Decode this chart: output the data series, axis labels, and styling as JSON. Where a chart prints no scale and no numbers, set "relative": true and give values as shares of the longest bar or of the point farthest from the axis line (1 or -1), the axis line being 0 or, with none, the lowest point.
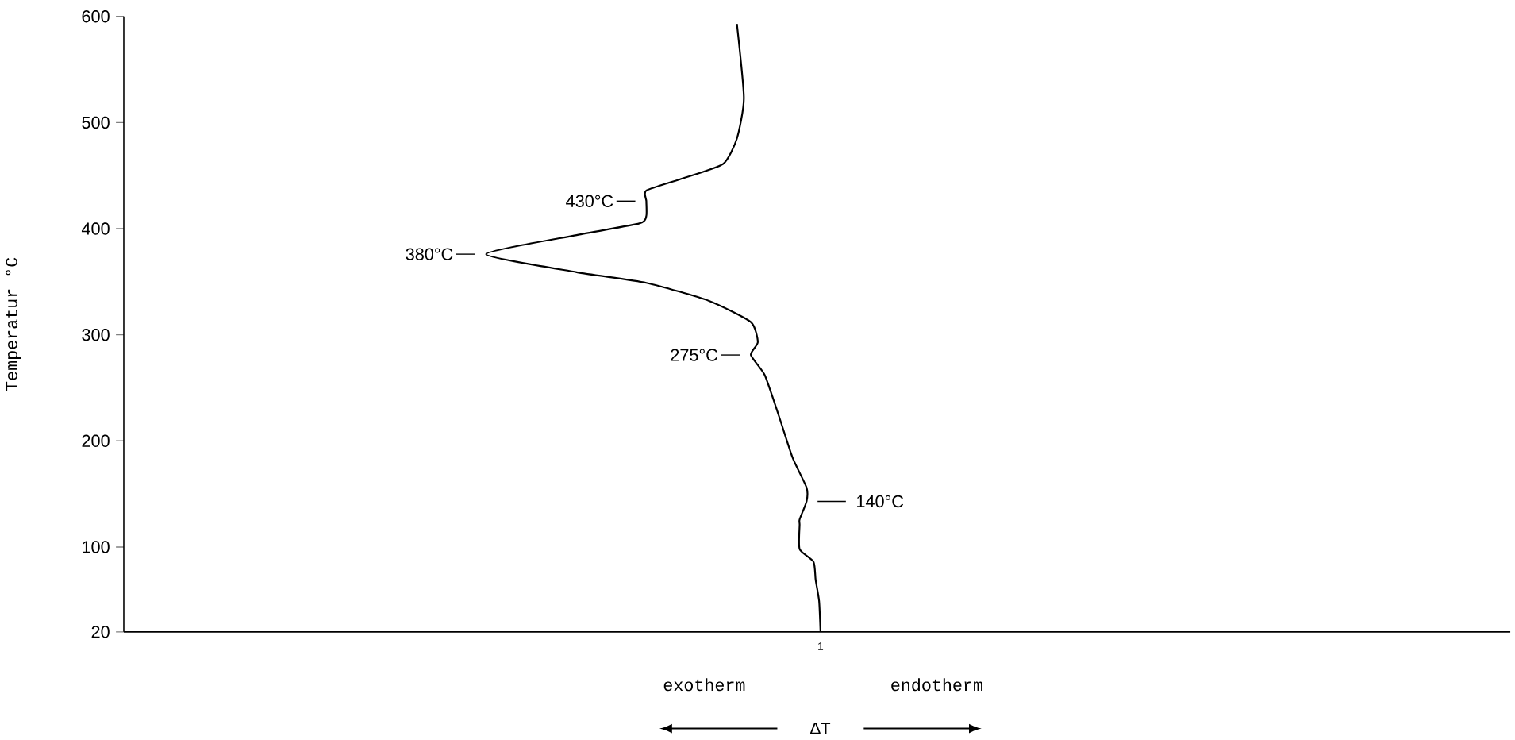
{
  "chart_data": {
    "type": "line",
    "orientation": "horizontal",
    "relative": true,
    "ylabel": "Temperatur    °C",
    "xlabel": "ΔT",
    "x": [
      593,
      523,
      485,
      461,
      447,
      436,
      426,
      412,
      405,
      394,
      376,
      359,
      349,
      332,
      312,
      293,
      281,
      262,
      224,
      184,
      156,
      143,
      126,
      121,
      98,
      86,
      69,
      49,
      20
    ],
    "series": [
      {
        "color": "#000000",
        "values": [
          0.88,
          0.89,
          0.88,
          0.86,
          0.8,
          0.75,
          0.75,
          0.75,
          0.74,
          0.65,
          0.52,
          0.65,
          0.75,
          0.84,
          0.9,
          0.91,
          0.9,
          0.92,
          0.94,
          0.96,
          0.98,
          0.98,
          0.97,
          0.97,
          0.97,
          0.99,
          0.993,
          0.998,
          1
        ]
      }
    ],
    "ylim": [
      20,
      600
    ],
    "yticks": [
      20,
      100,
      200,
      300,
      400,
      500,
      600
    ],
    "annotations": [
      {
        "text": "430°C",
        "x": 0.75,
        "y": 426
      },
      {
        "text": "380°C",
        "x": 0.52,
        "y": 376
      },
      {
        "text": "275°C",
        "x": 0.9,
        "y": 281
      },
      {
        "text": "140°C",
        "x": 0.98,
        "y": 143
      },
      {
        "text": "1",
        "x": 1,
        "y": 20
      },
      "exotherm",
      "endotherm"
    ]
  }
}
